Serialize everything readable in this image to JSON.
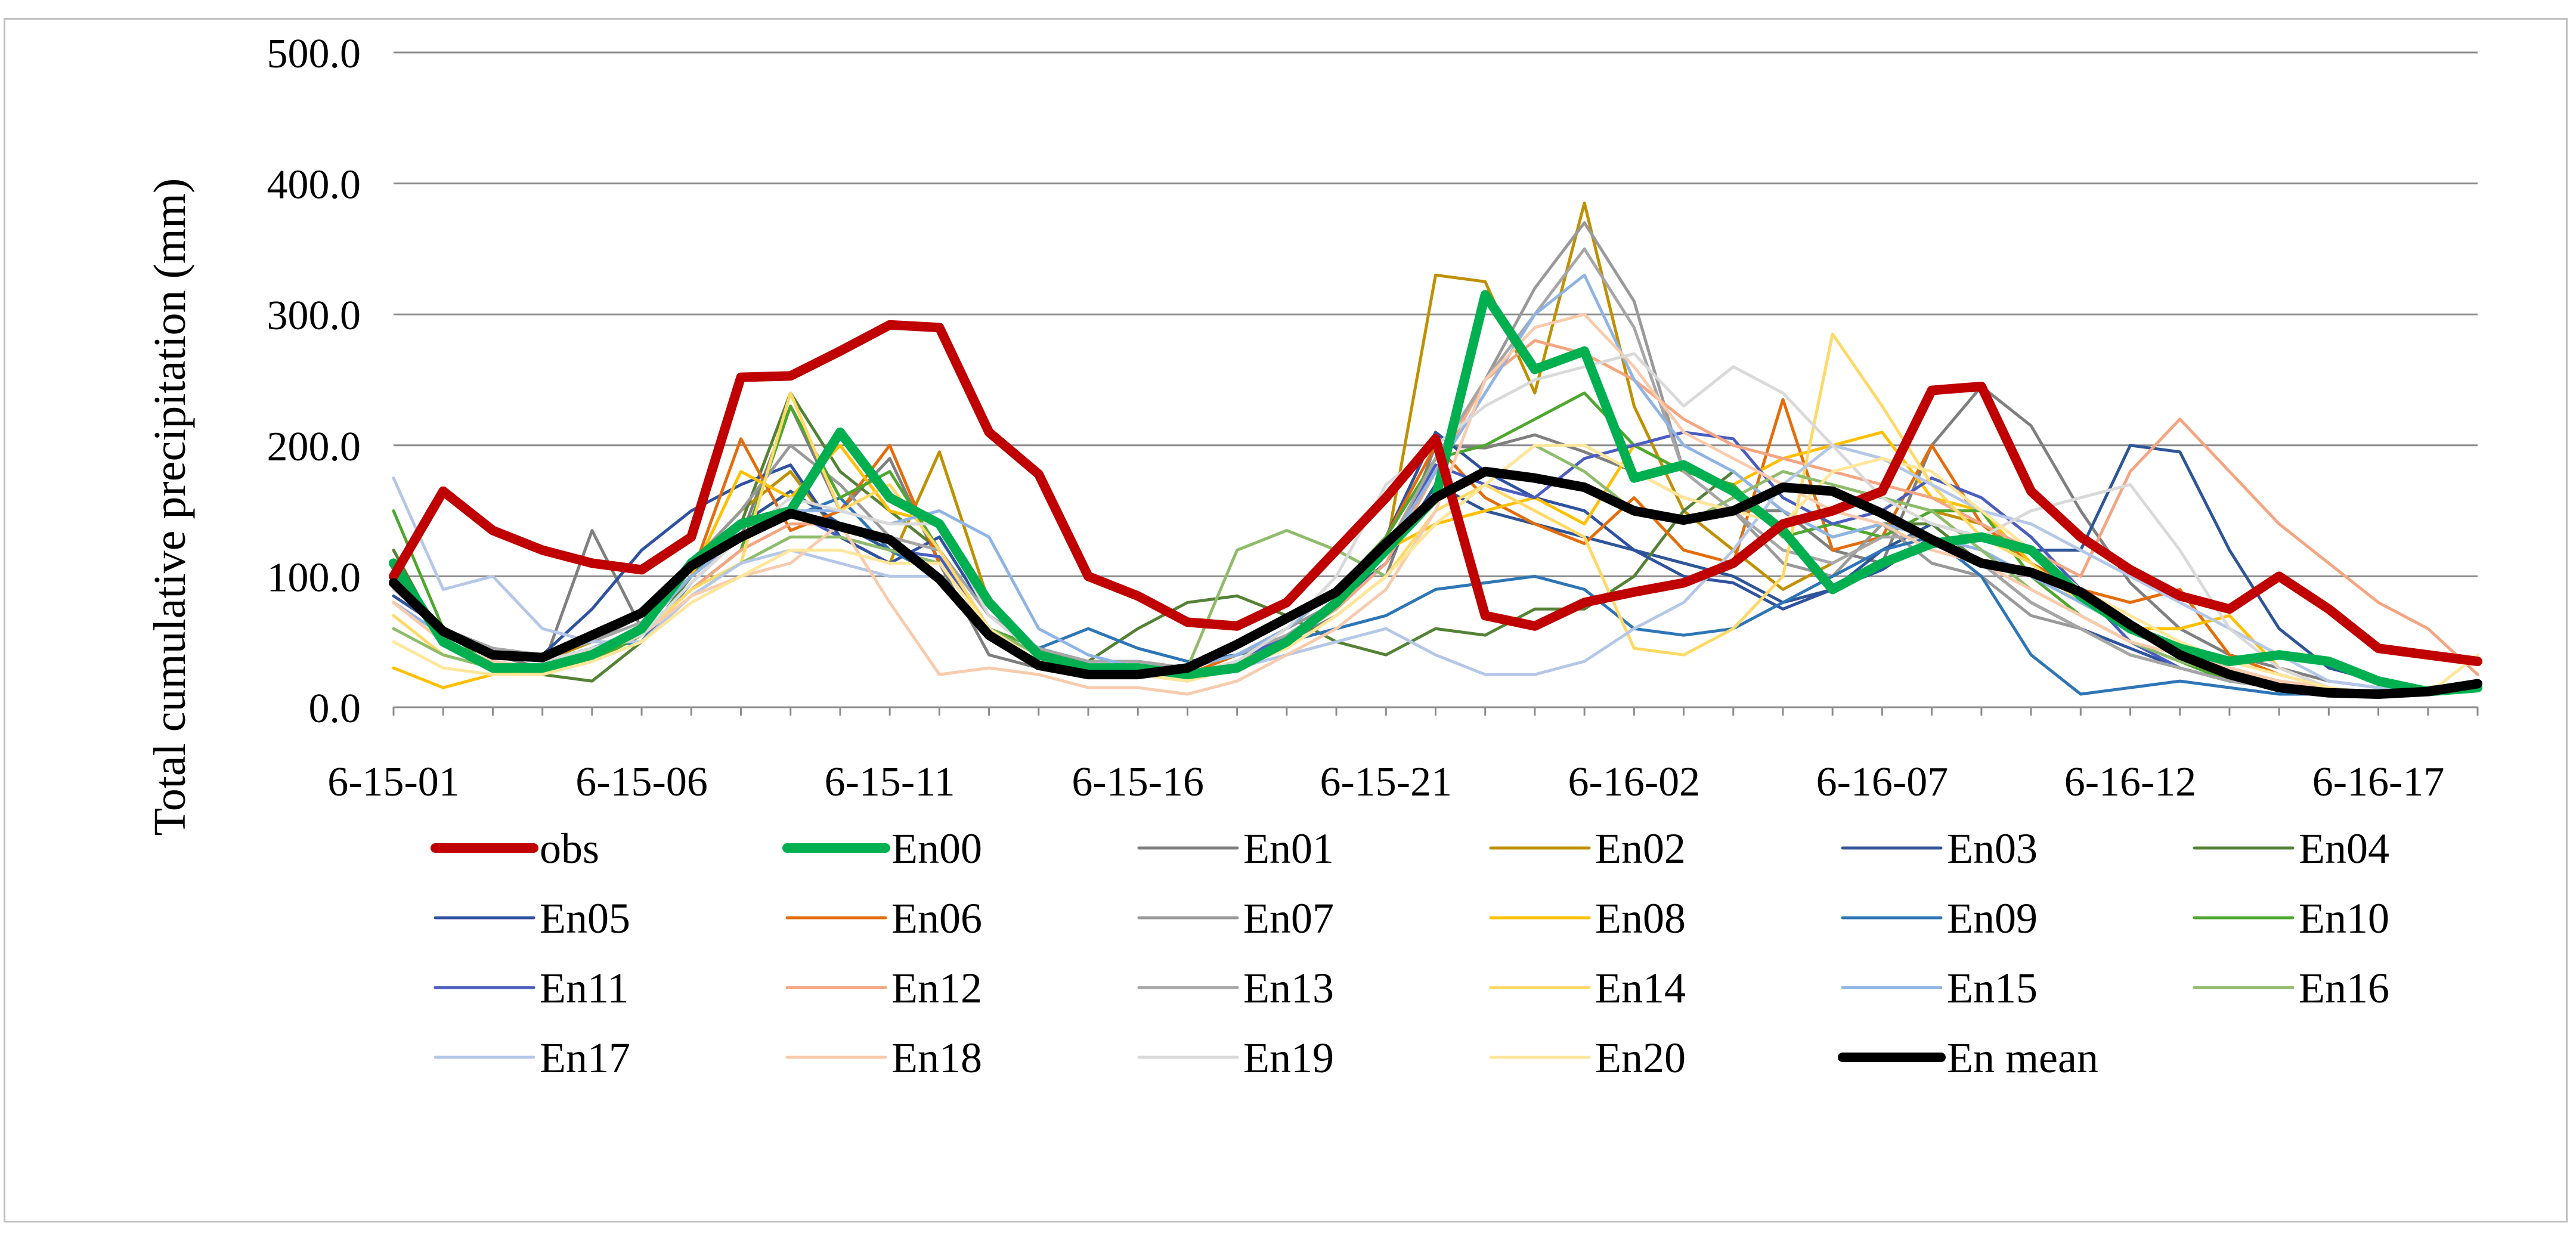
{
  "chart_data": {
    "type": "line",
    "title": "",
    "xlabel": "",
    "ylabel": "Total cumulative precipitation (mm)",
    "ylim": [
      0,
      500
    ],
    "yticks": [
      "0.0",
      "100.0",
      "200.0",
      "300.0",
      "400.0",
      "500.0"
    ],
    "xticks": [
      "6-15-01",
      "6-15-06",
      "6-15-11",
      "6-15-16",
      "6-15-21",
      "6-16-02",
      "6-16-07",
      "6-16-12",
      "6-16-17"
    ],
    "x": [
      "6-15-01",
      "6-15-02",
      "6-15-03",
      "6-15-04",
      "6-15-05",
      "6-15-06",
      "6-15-07",
      "6-15-08",
      "6-15-09",
      "6-15-10",
      "6-15-11",
      "6-15-12",
      "6-15-13",
      "6-15-14",
      "6-15-15",
      "6-15-16",
      "6-15-17",
      "6-15-18",
      "6-15-19",
      "6-15-20",
      "6-15-21",
      "6-15-22",
      "6-15-23",
      "6-15-24",
      "6-16-01",
      "6-16-02",
      "6-16-03",
      "6-16-04",
      "6-16-05",
      "6-16-06",
      "6-16-07",
      "6-16-08",
      "6-16-09",
      "6-16-10",
      "6-16-11",
      "6-16-12",
      "6-16-13",
      "6-16-14",
      "6-16-15",
      "6-16-16",
      "6-16-17",
      "6-16-18",
      "6-16-19"
    ],
    "series": [
      {
        "name": "obs",
        "color": "#c00000",
        "width": 16,
        "values": [
          100,
          165,
          135,
          120,
          110,
          105,
          130,
          252,
          253,
          272,
          292,
          290,
          210,
          178,
          100,
          85,
          65,
          62,
          80,
          120,
          160,
          205,
          70,
          62,
          80,
          88,
          95,
          110,
          140,
          150,
          165,
          242,
          245,
          165,
          130,
          105,
          85,
          75,
          100,
          75,
          45,
          40,
          35
        ]
      },
      {
        "name": "En00",
        "color": "#00b050",
        "width": 16,
        "values": [
          110,
          50,
          30,
          30,
          40,
          60,
          110,
          140,
          150,
          210,
          160,
          140,
          80,
          40,
          30,
          30,
          25,
          30,
          50,
          80,
          120,
          160,
          315,
          258,
          272,
          175,
          185,
          165,
          135,
          90,
          110,
          125,
          130,
          120,
          85,
          60,
          45,
          35,
          40,
          35,
          20,
          12,
          15
        ]
      },
      {
        "name": "En01",
        "color": "#7f7f7f",
        "width": 5,
        "values": [
          95,
          55,
          40,
          30,
          135,
          60,
          100,
          130,
          230,
          150,
          190,
          110,
          40,
          30,
          25,
          25,
          20,
          30,
          50,
          70,
          100,
          200,
          198,
          208,
          195,
          180,
          160,
          150,
          150,
          120,
          110,
          200,
          245,
          215,
          150,
          95,
          60,
          40,
          30,
          20,
          15,
          10,
          20
        ]
      },
      {
        "name": "En02",
        "color": "#bf9000",
        "width": 5,
        "values": [
          100,
          55,
          40,
          35,
          50,
          70,
          110,
          150,
          180,
          130,
          110,
          195,
          80,
          40,
          30,
          30,
          25,
          40,
          60,
          90,
          120,
          330,
          325,
          240,
          385,
          230,
          150,
          120,
          90,
          110,
          130,
          150,
          140,
          110,
          80,
          60,
          40,
          30,
          20,
          15,
          10,
          10,
          20
        ]
      },
      {
        "name": "En03",
        "color": "#2e5597",
        "width": 5,
        "values": [
          90,
          60,
          40,
          35,
          45,
          60,
          100,
          140,
          165,
          140,
          120,
          110,
          60,
          40,
          30,
          30,
          25,
          30,
          50,
          80,
          110,
          170,
          150,
          140,
          130,
          120,
          110,
          100,
          80,
          90,
          120,
          140,
          130,
          120,
          120,
          200,
          195,
          120,
          60,
          30,
          20,
          10,
          15
        ]
      },
      {
        "name": "En04",
        "color": "#548235",
        "width": 5,
        "values": [
          120,
          50,
          30,
          25,
          20,
          50,
          100,
          140,
          240,
          180,
          150,
          120,
          60,
          40,
          35,
          60,
          80,
          85,
          70,
          50,
          40,
          60,
          55,
          75,
          75,
          100,
          150,
          180,
          150,
          130,
          140,
          140,
          110,
          80,
          60,
          40,
          30,
          20,
          15,
          10,
          10,
          15,
          20
        ]
      },
      {
        "name": "En05",
        "color": "#2f52a0",
        "width": 5,
        "values": [
          85,
          60,
          45,
          40,
          75,
          120,
          150,
          170,
          185,
          130,
          110,
          130,
          70,
          45,
          35,
          35,
          30,
          40,
          60,
          90,
          130,
          210,
          180,
          160,
          150,
          120,
          100,
          95,
          75,
          90,
          105,
          130,
          110,
          80,
          60,
          45,
          30,
          20,
          15,
          10,
          10,
          10,
          15
        ]
      },
      {
        "name": "En06",
        "color": "#e46c0a",
        "width": 5,
        "values": [
          80,
          50,
          35,
          30,
          40,
          60,
          100,
          205,
          135,
          150,
          200,
          110,
          60,
          40,
          30,
          30,
          25,
          40,
          60,
          90,
          130,
          200,
          160,
          140,
          125,
          160,
          120,
          110,
          235,
          120,
          130,
          200,
          140,
          110,
          90,
          80,
          90,
          40,
          25,
          15,
          10,
          10,
          15
        ]
      },
      {
        "name": "En07",
        "color": "#999999",
        "width": 5,
        "values": [
          100,
          60,
          45,
          40,
          50,
          70,
          110,
          150,
          200,
          170,
          130,
          120,
          60,
          40,
          30,
          30,
          30,
          40,
          60,
          80,
          120,
          190,
          250,
          320,
          370,
          310,
          180,
          150,
          110,
          100,
          140,
          110,
          100,
          70,
          60,
          40,
          30,
          20,
          15,
          10,
          10,
          10,
          15
        ]
      },
      {
        "name": "En08",
        "color": "#ffc000",
        "width": 5,
        "values": [
          30,
          15,
          25,
          30,
          45,
          60,
          100,
          180,
          160,
          200,
          150,
          140,
          80,
          40,
          30,
          30,
          25,
          30,
          50,
          80,
          120,
          140,
          150,
          160,
          140,
          200,
          180,
          170,
          190,
          200,
          210,
          160,
          150,
          110,
          80,
          60,
          60,
          70,
          30,
          15,
          10,
          10,
          15
        ]
      },
      {
        "name": "En09",
        "color": "#2e75b6",
        "width": 5,
        "values": [
          100,
          60,
          40,
          35,
          45,
          50,
          95,
          130,
          145,
          160,
          120,
          100,
          60,
          45,
          60,
          45,
          35,
          40,
          50,
          60,
          70,
          90,
          95,
          100,
          90,
          60,
          55,
          60,
          80,
          100,
          120,
          130,
          100,
          40,
          10,
          15,
          20,
          15,
          10,
          10,
          10,
          10,
          15
        ]
      },
      {
        "name": "En10",
        "color": "#4ea72e",
        "width": 5,
        "values": [
          150,
          60,
          30,
          30,
          35,
          55,
          90,
          120,
          230,
          160,
          180,
          120,
          60,
          45,
          30,
          30,
          30,
          40,
          60,
          90,
          130,
          190,
          200,
          220,
          240,
          200,
          180,
          170,
          130,
          140,
          130,
          150,
          150,
          100,
          70,
          50,
          35,
          20,
          15,
          10,
          10,
          10,
          15
        ]
      },
      {
        "name": "En11",
        "color": "#4a5dbf",
        "width": 5,
        "values": [
          90,
          60,
          40,
          35,
          45,
          60,
          100,
          130,
          150,
          130,
          120,
          115,
          60,
          40,
          30,
          30,
          25,
          35,
          55,
          80,
          120,
          185,
          170,
          160,
          190,
          200,
          210,
          205,
          160,
          140,
          150,
          175,
          160,
          130,
          90,
          50,
          30,
          20,
          15,
          10,
          10,
          10,
          15
        ]
      },
      {
        "name": "En12",
        "color": "#f4a582",
        "width": 5,
        "values": [
          80,
          50,
          35,
          30,
          40,
          55,
          90,
          120,
          140,
          140,
          130,
          120,
          60,
          40,
          30,
          30,
          25,
          35,
          50,
          75,
          110,
          180,
          250,
          280,
          270,
          250,
          220,
          200,
          190,
          180,
          170,
          160,
          140,
          120,
          100,
          180,
          220,
          180,
          140,
          110,
          80,
          60,
          25
        ]
      },
      {
        "name": "En13",
        "color": "#a6a6a6",
        "width": 5,
        "values": [
          90,
          60,
          45,
          40,
          50,
          65,
          100,
          130,
          150,
          140,
          130,
          120,
          70,
          45,
          35,
          35,
          30,
          40,
          55,
          80,
          120,
          190,
          250,
          300,
          350,
          290,
          180,
          150,
          120,
          110,
          130,
          130,
          110,
          80,
          60,
          40,
          30,
          20,
          15,
          10,
          10,
          10,
          15
        ]
      },
      {
        "name": "En14",
        "color": "#ffd966",
        "width": 5,
        "values": [
          70,
          40,
          30,
          25,
          40,
          55,
          90,
          110,
          240,
          150,
          170,
          120,
          60,
          40,
          30,
          30,
          25,
          30,
          45,
          70,
          100,
          150,
          170,
          150,
          130,
          45,
          40,
          60,
          100,
          285,
          230,
          170,
          130,
          110,
          80,
          60,
          40,
          30,
          20,
          15,
          10,
          10,
          15
        ]
      },
      {
        "name": "En15",
        "color": "#8fb4e3",
        "width": 5,
        "values": [
          80,
          55,
          40,
          35,
          45,
          60,
          100,
          130,
          150,
          150,
          140,
          150,
          130,
          60,
          40,
          30,
          30,
          40,
          60,
          90,
          120,
          180,
          240,
          300,
          330,
          250,
          200,
          180,
          150,
          130,
          140,
          130,
          120,
          100,
          80,
          60,
          45,
          30,
          20,
          15,
          10,
          10,
          15
        ]
      },
      {
        "name": "En16",
        "color": "#8fbc6a",
        "width": 5,
        "values": [
          60,
          40,
          30,
          25,
          35,
          50,
          85,
          110,
          130,
          130,
          120,
          110,
          60,
          40,
          30,
          30,
          30,
          120,
          135,
          120,
          100,
          140,
          170,
          200,
          180,
          150,
          140,
          160,
          180,
          170,
          160,
          150,
          120,
          90,
          70,
          50,
          35,
          25,
          15,
          10,
          10,
          10,
          15
        ]
      },
      {
        "name": "En17",
        "color": "#b4c7e7",
        "width": 5,
        "values": [
          175,
          90,
          100,
          60,
          50,
          50,
          85,
          110,
          120,
          110,
          100,
          100,
          60,
          35,
          25,
          25,
          20,
          30,
          40,
          50,
          60,
          40,
          25,
          25,
          35,
          60,
          80,
          120,
          170,
          200,
          190,
          170,
          150,
          140,
          120,
          100,
          80,
          60,
          40,
          20,
          15,
          10,
          15
        ]
      },
      {
        "name": "En18",
        "color": "#f8cbad",
        "width": 5,
        "values": [
          80,
          50,
          35,
          30,
          40,
          55,
          85,
          100,
          110,
          140,
          80,
          25,
          30,
          25,
          15,
          15,
          10,
          20,
          40,
          60,
          90,
          150,
          250,
          290,
          300,
          260,
          210,
          190,
          170,
          150,
          140,
          120,
          110,
          90,
          70,
          50,
          40,
          30,
          20,
          15,
          10,
          10,
          15
        ]
      },
      {
        "name": "En19",
        "color": "#d9d9d9",
        "width": 5,
        "values": [
          90,
          60,
          40,
          35,
          45,
          55,
          95,
          130,
          160,
          150,
          140,
          140,
          70,
          40,
          30,
          30,
          25,
          35,
          60,
          100,
          170,
          200,
          230,
          250,
          260,
          270,
          230,
          260,
          240,
          200,
          160,
          140,
          130,
          150,
          160,
          170,
          120,
          60,
          30,
          15,
          10,
          10,
          15
        ]
      },
      {
        "name": "En20",
        "color": "#ffe699",
        "width": 5,
        "values": [
          50,
          30,
          25,
          25,
          35,
          50,
          80,
          100,
          120,
          120,
          110,
          110,
          60,
          35,
          25,
          25,
          20,
          30,
          45,
          70,
          100,
          140,
          170,
          200,
          200,
          180,
          160,
          150,
          140,
          180,
          190,
          180,
          150,
          120,
          90,
          70,
          50,
          35,
          25,
          15,
          10,
          10,
          40
        ]
      },
      {
        "name": "En mean",
        "color": "#000000",
        "width": 16,
        "values": [
          95,
          58,
          40,
          38,
          55,
          72,
          108,
          130,
          148,
          138,
          128,
          98,
          55,
          32,
          25,
          25,
          30,
          48,
          68,
          88,
          125,
          160,
          180,
          175,
          168,
          150,
          143,
          150,
          168,
          165,
          148,
          128,
          110,
          103,
          88,
          63,
          40,
          25,
          15,
          11,
          10,
          12,
          18
        ]
      }
    ]
  }
}
